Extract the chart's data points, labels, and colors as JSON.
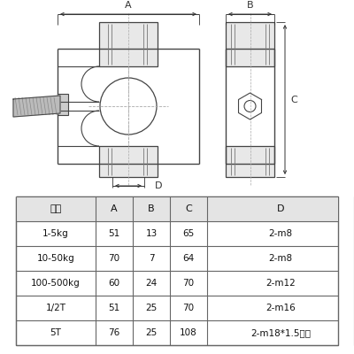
{
  "bg_color": "#ffffff",
  "table_header": [
    "量程",
    "A",
    "B",
    "C",
    "D"
  ],
  "table_rows": [
    [
      "1-5kg",
      "51",
      "13",
      "65",
      "2-m8"
    ],
    [
      "10-50kg",
      "70",
      "7",
      "64",
      "2-m8"
    ],
    [
      "100-500kg",
      "60",
      "24",
      "70",
      "2-m12"
    ],
    [
      "1/2T",
      "51",
      "25",
      "70",
      "2-m16"
    ],
    [
      "5T",
      "76",
      "25",
      "108",
      "2-m18*1.5细牙"
    ]
  ],
  "line_color": "#444444",
  "dim_color": "#333333",
  "center_line_color": "#aaaaaa",
  "fill_color": "#d8d8d8",
  "table_line_color": "#666666",
  "text_color": "#111111",
  "header_bg": "#e4e4e4"
}
